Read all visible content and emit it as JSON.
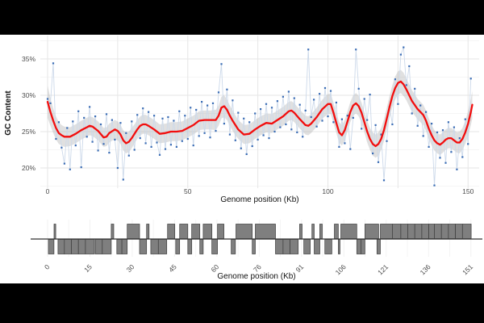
{
  "figure": {
    "background": "#000000",
    "panel_background": "#ffffff",
    "grid_major_color": "#e6e6e6",
    "grid_minor_color": "#f2f2f2",
    "tick_text_color": "#4d4d4d"
  },
  "gc_plot": {
    "y_axis_title": "GC Content",
    "x_axis_title": "Genome position (Kb)"
  },
  "gene_map": {
    "x_axis_title": "Genome position (Kb)"
  },
  "chart_data": [
    {
      "type": "scatter",
      "title": "",
      "xlabel": "Genome position (Kb)",
      "ylabel": "GC Content",
      "legend": "none",
      "grid": "on",
      "xlim": [
        -2.5,
        154
      ],
      "ylim": [
        17,
        38.5
      ],
      "x_ticks": [
        0,
        50,
        100,
        150
      ],
      "x_tick_labels": [
        "0",
        "50",
        "100",
        "150"
      ],
      "x_grid_major": [
        0,
        25,
        50,
        75,
        100,
        125,
        150
      ],
      "y_ticks": [
        20,
        25,
        30,
        35
      ],
      "y_tick_labels": [
        "20%",
        "25%",
        "30%",
        "35%"
      ],
      "y_grid_minor": [
        17.5,
        22.5,
        27.5,
        32.5,
        37.5
      ],
      "series": [
        {
          "name": "gc-content-windows",
          "type": "scatter-with-connector-line",
          "point_color": "#3b6db5",
          "connector_color": "#ccd9ea",
          "x_start_kb": 0,
          "x_step_kb": 1,
          "y_percent": [
            29.5,
            28.9,
            34.4,
            24.0,
            26.3,
            22.8,
            20.6,
            25.5,
            19.8,
            26.4,
            23.1,
            27.8,
            20.1,
            26.9,
            24.3,
            28.4,
            23.6,
            27.1,
            22.4,
            26.0,
            23.3,
            27.4,
            22.1,
            26.6,
            23.9,
            20.0,
            26.2,
            18.4,
            24.8,
            21.7,
            26.4,
            22.5,
            27.3,
            24.1,
            28.2,
            23.4,
            27.7,
            22.9,
            27.2,
            23.5,
            21.8,
            26.8,
            22.6,
            27.0,
            23.2,
            26.5,
            22.9,
            27.8,
            23.7,
            27.2,
            24.0,
            28.3,
            23.1,
            28.0,
            24.4,
            29.1,
            24.8,
            28.6,
            24.2,
            28.9,
            25.1,
            30.4,
            34.3,
            26.1,
            30.8,
            24.6,
            29.3,
            23.8,
            27.6,
            22.7,
            26.8,
            21.9,
            26.3,
            23.0,
            27.5,
            23.9,
            28.1,
            24.5,
            28.8,
            24.1,
            28.3,
            25.0,
            29.2,
            25.6,
            29.8,
            26.0,
            30.5,
            25.3,
            29.6,
            24.9,
            28.7,
            24.3,
            27.9,
            36.3,
            27.0,
            29.4,
            25.7,
            30.2,
            26.5,
            31.0,
            27.1,
            30.6,
            26.3,
            29.0,
            22.9,
            26.7,
            23.4,
            27.2,
            22.6,
            26.9,
            36.3,
            30.9,
            25.4,
            29.5,
            26.6,
            30.1,
            22.0,
            25.9,
            20.8,
            24.6,
            18.3,
            23.7,
            28.4,
            26.0,
            32.2,
            28.8,
            35.6,
            36.6,
            31.4,
            34.0,
            27.5,
            30.9,
            25.8,
            28.6,
            24.4,
            27.7,
            22.9,
            26.1,
            17.6,
            24.9,
            21.4,
            25.2,
            20.7,
            26.3,
            22.2,
            25.6,
            19.8,
            24.1,
            21.5,
            26.7,
            23.3,
            32.3
          ]
        },
        {
          "name": "loess-smooth",
          "type": "line-with-ribbon",
          "line_color": "#f20d0d",
          "ribbon_color": "#9e9e9e",
          "ribbon_opacity": 0.32,
          "points_x_y_halfband": [
            [
              0,
              29.1,
              2.2
            ],
            [
              1,
              27.7,
              1.9
            ],
            [
              2,
              26.5,
              1.7
            ],
            [
              3,
              25.5,
              1.6
            ],
            [
              4,
              24.8,
              1.5
            ],
            [
              5,
              24.5,
              1.4
            ],
            [
              6,
              24.3,
              1.4
            ],
            [
              8,
              24.3,
              1.3
            ],
            [
              10,
              24.7,
              1.3
            ],
            [
              12,
              25.2,
              1.3
            ],
            [
              14,
              25.6,
              1.3
            ],
            [
              15,
              25.8,
              1.3
            ],
            [
              16,
              25.7,
              1.3
            ],
            [
              18,
              25.1,
              1.3
            ],
            [
              20,
              24.2,
              1.3
            ],
            [
              21,
              24.3,
              1.3
            ],
            [
              22,
              24.8,
              1.3
            ],
            [
              24,
              25.3,
              1.3
            ],
            [
              25,
              25.1,
              1.3
            ],
            [
              26,
              24.6,
              1.3
            ],
            [
              27,
              23.8,
              1.4
            ],
            [
              28,
              23.4,
              1.4
            ],
            [
              29,
              23.6,
              1.4
            ],
            [
              30,
              24.1,
              1.4
            ],
            [
              31,
              24.7,
              1.3
            ],
            [
              32,
              25.3,
              1.3
            ],
            [
              33,
              25.8,
              1.3
            ],
            [
              34,
              26.0,
              1.3
            ],
            [
              35,
              26.0,
              1.3
            ],
            [
              36,
              25.8,
              1.3
            ],
            [
              38,
              25.3,
              1.3
            ],
            [
              40,
              24.7,
              1.3
            ],
            [
              42,
              24.8,
              1.3
            ],
            [
              44,
              25.0,
              1.3
            ],
            [
              46,
              25.0,
              1.3
            ],
            [
              48,
              25.1,
              1.3
            ],
            [
              50,
              25.5,
              1.3
            ],
            [
              52,
              25.9,
              1.3
            ],
            [
              54,
              26.5,
              1.3
            ],
            [
              56,
              26.6,
              1.3
            ],
            [
              58,
              26.6,
              1.3
            ],
            [
              60,
              26.6,
              1.4
            ],
            [
              61,
              27.2,
              1.4
            ],
            [
              62,
              28.3,
              1.5
            ],
            [
              63,
              28.5,
              1.5
            ],
            [
              64,
              28.0,
              1.4
            ],
            [
              65,
              27.2,
              1.4
            ],
            [
              66,
              26.5,
              1.4
            ],
            [
              68,
              25.3,
              1.3
            ],
            [
              70,
              24.6,
              1.3
            ],
            [
              72,
              24.7,
              1.3
            ],
            [
              74,
              25.3,
              1.3
            ],
            [
              76,
              25.8,
              1.3
            ],
            [
              78,
              26.2,
              1.3
            ],
            [
              80,
              26.1,
              1.3
            ],
            [
              82,
              26.6,
              1.3
            ],
            [
              84,
              27.1,
              1.3
            ],
            [
              86,
              27.8,
              1.3
            ],
            [
              87,
              27.9,
              1.3
            ],
            [
              88,
              27.6,
              1.3
            ],
            [
              90,
              26.7,
              1.3
            ],
            [
              92,
              25.9,
              1.3
            ],
            [
              93,
              25.8,
              1.3
            ],
            [
              94,
              26.1,
              1.3
            ],
            [
              96,
              27.0,
              1.3
            ],
            [
              98,
              28.1,
              1.3
            ],
            [
              100,
              28.8,
              1.4
            ],
            [
              101,
              28.8,
              1.4
            ],
            [
              102,
              27.6,
              1.4
            ],
            [
              103,
              26.2,
              1.4
            ],
            [
              104,
              24.9,
              1.4
            ],
            [
              105,
              24.5,
              1.4
            ],
            [
              106,
              25.2,
              1.4
            ],
            [
              107,
              26.4,
              1.4
            ],
            [
              108,
              27.7,
              1.4
            ],
            [
              109,
              28.6,
              1.4
            ],
            [
              110,
              28.9,
              1.4
            ],
            [
              111,
              28.5,
              1.4
            ],
            [
              112,
              27.6,
              1.4
            ],
            [
              113,
              26.3,
              1.4
            ],
            [
              114,
              25.0,
              1.5
            ],
            [
              115,
              24.0,
              1.5
            ],
            [
              116,
              23.3,
              1.6
            ],
            [
              117,
              23.0,
              1.6
            ],
            [
              118,
              23.3,
              1.6
            ],
            [
              119,
              24.0,
              1.5
            ],
            [
              120,
              25.2,
              1.5
            ],
            [
              121,
              26.8,
              1.5
            ],
            [
              122,
              28.4,
              1.5
            ],
            [
              123,
              29.9,
              1.5
            ],
            [
              124,
              31.0,
              1.6
            ],
            [
              125,
              31.7,
              1.6
            ],
            [
              126,
              31.9,
              1.6
            ],
            [
              127,
              31.5,
              1.6
            ],
            [
              128,
              30.8,
              1.5
            ],
            [
              129,
              30.0,
              1.5
            ],
            [
              130,
              29.2,
              1.5
            ],
            [
              132,
              28.1,
              1.4
            ],
            [
              134,
              27.3,
              1.4
            ],
            [
              135,
              26.5,
              1.4
            ],
            [
              136,
              25.4,
              1.4
            ],
            [
              137,
              24.5,
              1.4
            ],
            [
              138,
              23.8,
              1.4
            ],
            [
              139,
              23.4,
              1.4
            ],
            [
              140,
              23.2,
              1.4
            ],
            [
              141,
              23.5,
              1.4
            ],
            [
              142,
              23.9,
              1.4
            ],
            [
              143,
              24.1,
              1.4
            ],
            [
              144,
              24.1,
              1.4
            ],
            [
              145,
              23.8,
              1.4
            ],
            [
              146,
              23.5,
              1.4
            ],
            [
              147,
              23.5,
              1.5
            ],
            [
              148,
              24.0,
              1.5
            ],
            [
              149,
              24.9,
              1.6
            ],
            [
              150,
              26.1,
              1.7
            ],
            [
              151,
              27.7,
              1.8
            ],
            [
              151.5,
              28.7,
              1.9
            ]
          ]
        }
      ]
    },
    {
      "type": "gene-map",
      "xlabel": "Genome position (Kb)",
      "bar_fill": "#7f7f7f",
      "bar_stroke": "#3d3d3d",
      "baseline_color": "#333333",
      "x_ticks_kb": [
        0,
        15.1,
        30.2,
        45.3,
        60.4,
        75.5,
        90.6,
        105.7,
        120.8,
        135.9,
        151
      ],
      "x_tick_labels": [
        "0",
        "15",
        "30",
        "45",
        "60",
        "76",
        "91",
        "106",
        "121",
        "136",
        "151"
      ],
      "forward_segments_kb": [
        [
          2.3,
          2.9
        ],
        [
          22.7,
          23.6
        ],
        [
          28.4,
          32.8
        ],
        [
          35.3,
          36.2
        ],
        [
          42.8,
          45.4
        ],
        [
          47.1,
          50.0
        ],
        [
          51.4,
          54.3
        ],
        [
          55.5,
          58.6
        ],
        [
          60.6,
          62.9
        ],
        [
          67.2,
          73.0
        ],
        [
          74.1,
          81.3
        ],
        [
          89.9,
          90.8
        ],
        [
          94.3,
          95.1
        ],
        [
          97.1,
          98.0
        ],
        [
          102.3,
          103.7
        ],
        [
          104.6,
          110.3
        ],
        [
          113.2,
          118.1
        ],
        [
          118.7,
          123.0
        ],
        [
          123.0,
          126.0
        ],
        [
          126.0,
          128.5
        ],
        [
          128.5,
          131.0
        ],
        [
          131.0,
          133.5
        ],
        [
          133.5,
          136.0
        ],
        [
          136.0,
          138.0
        ],
        [
          138.0,
          140.5
        ],
        [
          140.5,
          143.0
        ],
        [
          143.0,
          145.5
        ],
        [
          145.5,
          148.0
        ],
        [
          148.0,
          151.1
        ]
      ],
      "reverse_segments_kb": [
        [
          0.3,
          2.3
        ],
        [
          3.7,
          6.0
        ],
        [
          6.0,
          8.5
        ],
        [
          8.5,
          11.0
        ],
        [
          11.0,
          13.5
        ],
        [
          13.5,
          16.7
        ],
        [
          17.0,
          19.5
        ],
        [
          19.5,
          22.7
        ],
        [
          24.7,
          26.5
        ],
        [
          26.5,
          28.4
        ],
        [
          32.8,
          35.3
        ],
        [
          36.8,
          39.5
        ],
        [
          39.5,
          42.5
        ],
        [
          45.7,
          47.1
        ],
        [
          50.0,
          51.4
        ],
        [
          54.3,
          55.5
        ],
        [
          58.6,
          60.6
        ],
        [
          65.5,
          67.0
        ],
        [
          73.0,
          74.1
        ],
        [
          81.3,
          84.0
        ],
        [
          84.0,
          86.5
        ],
        [
          86.5,
          89.4
        ],
        [
          91.4,
          93.7
        ],
        [
          95.1,
          97.1
        ],
        [
          98.9,
          101.4
        ],
        [
          103.7,
          104.3
        ],
        [
          110.3,
          111.8
        ],
        [
          111.8,
          113.2
        ],
        [
          117.5,
          118.7
        ]
      ]
    }
  ]
}
